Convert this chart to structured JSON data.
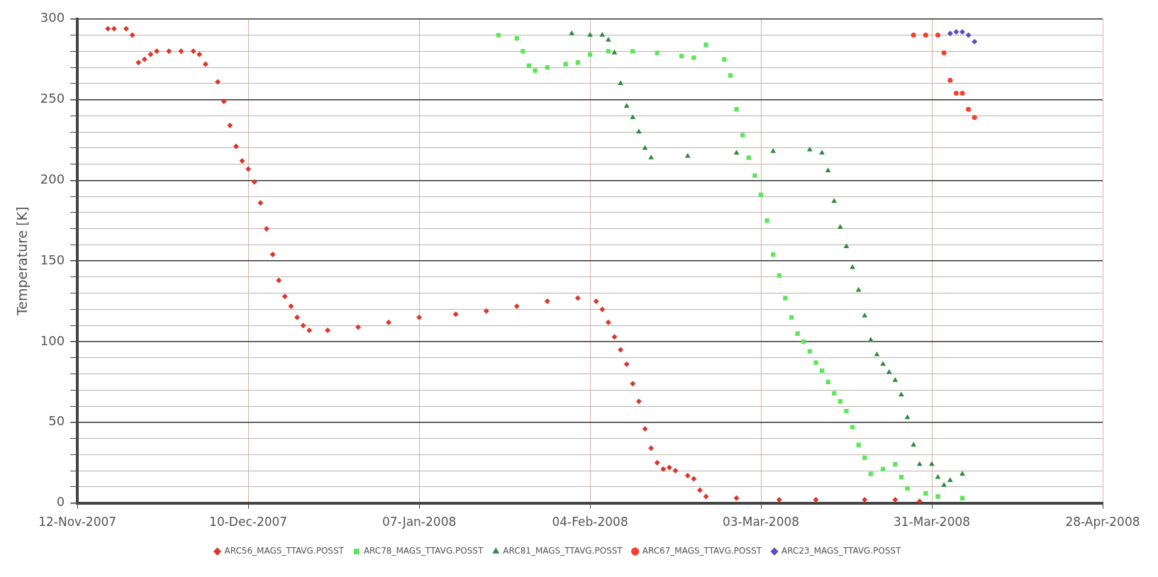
{
  "chart_data": {
    "type": "scatter",
    "ylabel": "Temperature [K]",
    "xlim": [
      "2007-11-12",
      "2008-04-28"
    ],
    "xticks": [
      {
        "value": "2007-11-12",
        "label": "12-Nov-2007"
      },
      {
        "value": "2007-12-10",
        "label": "10-Dec-2007"
      },
      {
        "value": "2008-01-07",
        "label": "07-Jan-2008"
      },
      {
        "value": "2008-02-04",
        "label": "04-Feb-2008"
      },
      {
        "value": "2008-03-03",
        "label": "03-Mar-2008"
      },
      {
        "value": "2008-03-31",
        "label": "31-Mar-2008"
      },
      {
        "value": "2008-04-28",
        "label": "28-Apr-2008"
      }
    ],
    "ylim": [
      0,
      300
    ],
    "yticks": [
      0,
      {
        "value": 10,
        "label": null
      },
      {
        "value": 20,
        "label": null
      },
      {
        "value": 30,
        "label": null
      },
      {
        "value": 40,
        "label": null
      },
      50,
      {
        "value": 60,
        "label": null
      },
      {
        "value": 70,
        "label": null
      },
      {
        "value": 80,
        "label": null
      },
      {
        "value": 90,
        "label": null
      },
      100,
      {
        "value": 110,
        "label": null
      },
      {
        "value": 120,
        "label": null
      },
      {
        "value": 130,
        "label": null
      },
      {
        "value": 140,
        "label": null
      },
      150,
      {
        "value": 160,
        "label": null
      },
      {
        "value": 170,
        "label": null
      },
      {
        "value": 180,
        "label": null
      },
      {
        "value": 190,
        "label": null
      },
      200,
      {
        "value": 210,
        "label": null
      },
      {
        "value": 220,
        "label": null
      },
      {
        "value": 230,
        "label": null
      },
      {
        "value": 240,
        "label": null
      },
      250,
      {
        "value": 260,
        "label": null
      },
      {
        "value": 270,
        "label": null
      },
      {
        "value": 280,
        "label": null
      },
      {
        "value": 290,
        "label": null
      },
      300
    ],
    "grid": true,
    "legend": "bottom",
    "series": [
      {
        "name": "ARC56_MAGS_TTAVG.POSST",
        "color": "#d9382a",
        "marker": "diamond",
        "x": [
          "2007-11-17",
          "2007-11-18",
          "2007-11-20",
          "2007-11-21",
          "2007-11-22",
          "2007-11-23",
          "2007-11-24",
          "2007-11-25",
          "2007-11-27",
          "2007-11-29",
          "2007-12-01",
          "2007-12-02",
          "2007-12-03",
          "2007-12-05",
          "2007-12-06",
          "2007-12-07",
          "2007-12-08",
          "2007-12-09",
          "2007-12-10",
          "2007-12-11",
          "2007-12-12",
          "2007-12-13",
          "2007-12-14",
          "2007-12-15",
          "2007-12-16",
          "2007-12-17",
          "2007-12-18",
          "2007-12-19",
          "2007-12-20",
          "2007-12-23",
          "2007-12-28",
          "2008-01-02",
          "2008-01-07",
          "2008-01-13",
          "2008-01-18",
          "2008-01-23",
          "2008-01-28",
          "2008-02-02",
          "2008-02-05",
          "2008-02-06",
          "2008-02-07",
          "2008-02-08",
          "2008-02-09",
          "2008-02-10",
          "2008-02-11",
          "2008-02-12",
          "2008-02-13",
          "2008-02-14",
          "2008-02-15",
          "2008-02-16",
          "2008-02-17",
          "2008-02-18",
          "2008-02-20",
          "2008-02-21",
          "2008-02-22",
          "2008-02-23",
          "2008-02-28",
          "2008-03-06",
          "2008-03-12",
          "2008-03-20",
          "2008-03-25",
          "2008-03-29"
        ],
        "values": [
          294,
          294,
          294,
          290,
          273,
          275,
          278,
          280,
          280,
          280,
          280,
          278,
          272,
          261,
          249,
          234,
          221,
          212,
          207,
          199,
          186,
          170,
          154,
          138,
          128,
          122,
          115,
          110,
          107,
          107,
          109,
          112,
          115,
          117,
          119,
          122,
          125,
          127,
          125,
          120,
          112,
          103,
          95,
          86,
          74,
          63,
          46,
          34,
          25,
          21,
          22,
          20,
          17,
          15,
          8,
          4,
          3,
          2,
          2,
          2,
          2,
          1
        ]
      },
      {
        "name": "ARC78_MAGS_TTAVG.POSST",
        "color": "#5ee65a",
        "marker": "square",
        "x": [
          "2008-01-20",
          "2008-01-23",
          "2008-01-24",
          "2008-01-25",
          "2008-01-26",
          "2008-01-28",
          "2008-01-31",
          "2008-02-02",
          "2008-02-04",
          "2008-02-07",
          "2008-02-11",
          "2008-02-15",
          "2008-02-19",
          "2008-02-21",
          "2008-02-23",
          "2008-02-26",
          "2008-02-27",
          "2008-02-28",
          "2008-02-29",
          "2008-03-01",
          "2008-03-02",
          "2008-03-03",
          "2008-03-04",
          "2008-03-05",
          "2008-03-06",
          "2008-03-07",
          "2008-03-08",
          "2008-03-09",
          "2008-03-10",
          "2008-03-11",
          "2008-03-12",
          "2008-03-13",
          "2008-03-14",
          "2008-03-15",
          "2008-03-16",
          "2008-03-17",
          "2008-03-18",
          "2008-03-19",
          "2008-03-20",
          "2008-03-21",
          "2008-03-23",
          "2008-03-25",
          "2008-03-26",
          "2008-03-27",
          "2008-03-30",
          "2008-04-01",
          "2008-04-05"
        ],
        "values": [
          290,
          288,
          280,
          271,
          268,
          270,
          272,
          273,
          278,
          280,
          280,
          279,
          277,
          276,
          284,
          275,
          265,
          244,
          228,
          214,
          203,
          191,
          175,
          154,
          141,
          127,
          115,
          105,
          100,
          94,
          87,
          82,
          75,
          68,
          63,
          57,
          47,
          36,
          28,
          18,
          21,
          24,
          16,
          9,
          6,
          4,
          3
        ]
      },
      {
        "name": "ARC81_MAGS_TTAVG.POSST",
        "color": "#2e8b3e",
        "marker": "triangle",
        "x": [
          "2008-02-01",
          "2008-02-04",
          "2008-02-06",
          "2008-02-07",
          "2008-02-08",
          "2008-02-09",
          "2008-02-10",
          "2008-02-11",
          "2008-02-12",
          "2008-02-13",
          "2008-02-14",
          "2008-02-20",
          "2008-02-28",
          "2008-03-05",
          "2008-03-11",
          "2008-03-13",
          "2008-03-14",
          "2008-03-15",
          "2008-03-16",
          "2008-03-17",
          "2008-03-18",
          "2008-03-19",
          "2008-03-20",
          "2008-03-21",
          "2008-03-22",
          "2008-03-23",
          "2008-03-24",
          "2008-03-25",
          "2008-03-26",
          "2008-03-27",
          "2008-03-28",
          "2008-03-29",
          "2008-03-31",
          "2008-04-01",
          "2008-04-02",
          "2008-04-03",
          "2008-04-05"
        ],
        "values": [
          291,
          290,
          290,
          287,
          279,
          260,
          246,
          239,
          230,
          220,
          214,
          215,
          217,
          218,
          219,
          217,
          206,
          187,
          171,
          159,
          146,
          132,
          116,
          101,
          92,
          86,
          81,
          76,
          67,
          53,
          36,
          24,
          24,
          16,
          11,
          14,
          18
        ]
      },
      {
        "name": "ARC67_MAGS_TTAVG.POSST",
        "color": "#f5412e",
        "marker": "circle",
        "x": [
          "2008-03-28",
          "2008-03-30",
          "2008-04-01",
          "2008-04-02",
          "2008-04-03",
          "2008-04-04",
          "2008-04-05",
          "2008-04-06",
          "2008-04-07"
        ],
        "values": [
          290,
          290,
          290,
          279,
          262,
          254,
          254,
          244,
          239
        ]
      },
      {
        "name": "ARC23_MAGS_TTAVG.POSST",
        "color": "#5a4fc0",
        "marker": "diamond",
        "x": [
          "2008-04-03",
          "2008-04-04",
          "2008-04-05",
          "2008-04-06",
          "2008-04-07"
        ],
        "values": [
          291,
          292,
          292,
          290,
          286
        ]
      }
    ]
  }
}
